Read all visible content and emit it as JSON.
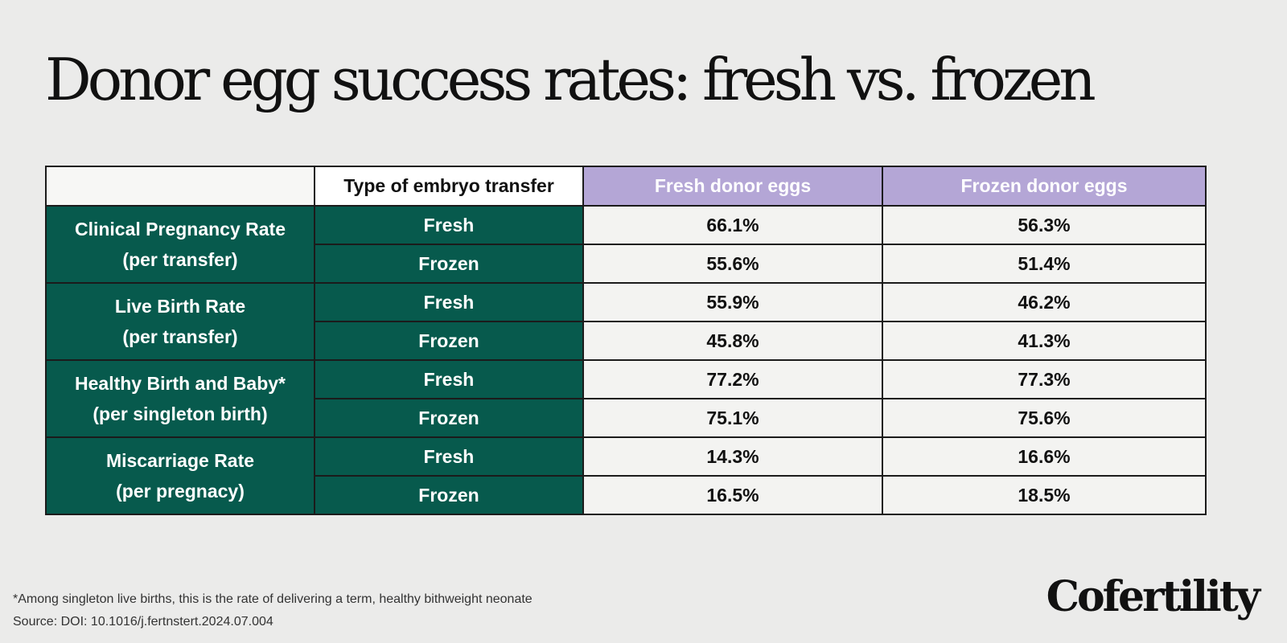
{
  "title": "Donor egg success rates: fresh vs. frozen",
  "chart_data": {
    "type": "table",
    "columns": [
      "",
      "Type of embryo transfer",
      "Fresh donor eggs",
      "Frozen donor eggs"
    ],
    "groups": [
      {
        "label_lines": [
          "Clinical Pregnancy Rate",
          "(per transfer)"
        ],
        "rows": [
          {
            "type": "Fresh",
            "fresh_donor": "66.1%",
            "frozen_donor": "56.3%"
          },
          {
            "type": "Frozen",
            "fresh_donor": "55.6%",
            "frozen_donor": "51.4%"
          }
        ]
      },
      {
        "label_lines": [
          "Live Birth Rate",
          "(per transfer)"
        ],
        "rows": [
          {
            "type": "Fresh",
            "fresh_donor": "55.9%",
            "frozen_donor": "46.2%"
          },
          {
            "type": "Frozen",
            "fresh_donor": "45.8%",
            "frozen_donor": "41.3%"
          }
        ]
      },
      {
        "label_lines": [
          "Healthy Birth and Baby*",
          "(per singleton birth)"
        ],
        "rows": [
          {
            "type": "Fresh",
            "fresh_donor": "77.2%",
            "frozen_donor": "77.3%"
          },
          {
            "type": "Frozen",
            "fresh_donor": "75.1%",
            "frozen_donor": "75.6%"
          }
        ]
      },
      {
        "label_lines": [
          "Miscarriage Rate",
          "(per pregnacy)"
        ],
        "rows": [
          {
            "type": "Fresh",
            "fresh_donor": "14.3%",
            "frozen_donor": "16.6%"
          },
          {
            "type": "Frozen",
            "fresh_donor": "16.5%",
            "frozen_donor": "18.5%"
          }
        ]
      }
    ]
  },
  "footnote": "*Among singleton live births, this is the rate of delivering a term, healthy bithweight neonate",
  "source": "Source: DOI: 10.1016/j.fertnstert.2024.07.004",
  "logo": "Cofertility",
  "colors": {
    "background": "#ebebea",
    "metric_cell": "#075a4d",
    "header_accent": "#b4a6d6",
    "value_cell": "#f3f3f1"
  }
}
